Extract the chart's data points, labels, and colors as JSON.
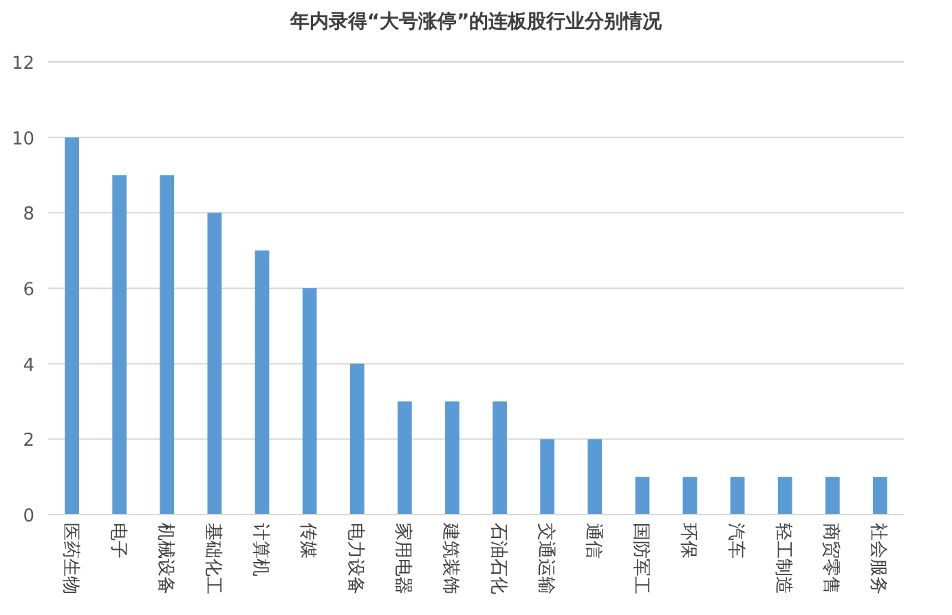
{
  "chart_data": {
    "type": "bar",
    "title": "年内录得“大号涨停”的连板股行业分别情况",
    "categories": [
      "医药生物",
      "电子",
      "机械设备",
      "基础化工",
      "计算机",
      "传媒",
      "电力设备",
      "家用电器",
      "建筑装饰",
      "石油石化",
      "交通运输",
      "通信",
      "国防军工",
      "环保",
      "汽车",
      "轻工制造",
      "商贸零售",
      "社会服务"
    ],
    "values": [
      10,
      9,
      9,
      8,
      7,
      6,
      4,
      3,
      3,
      3,
      2,
      2,
      1,
      1,
      1,
      1,
      1,
      1
    ],
    "color": "#5b9bd5",
    "ylim": [
      0,
      12
    ],
    "yticks": [
      0,
      2,
      4,
      6,
      8,
      10,
      12
    ],
    "grid": "y"
  }
}
